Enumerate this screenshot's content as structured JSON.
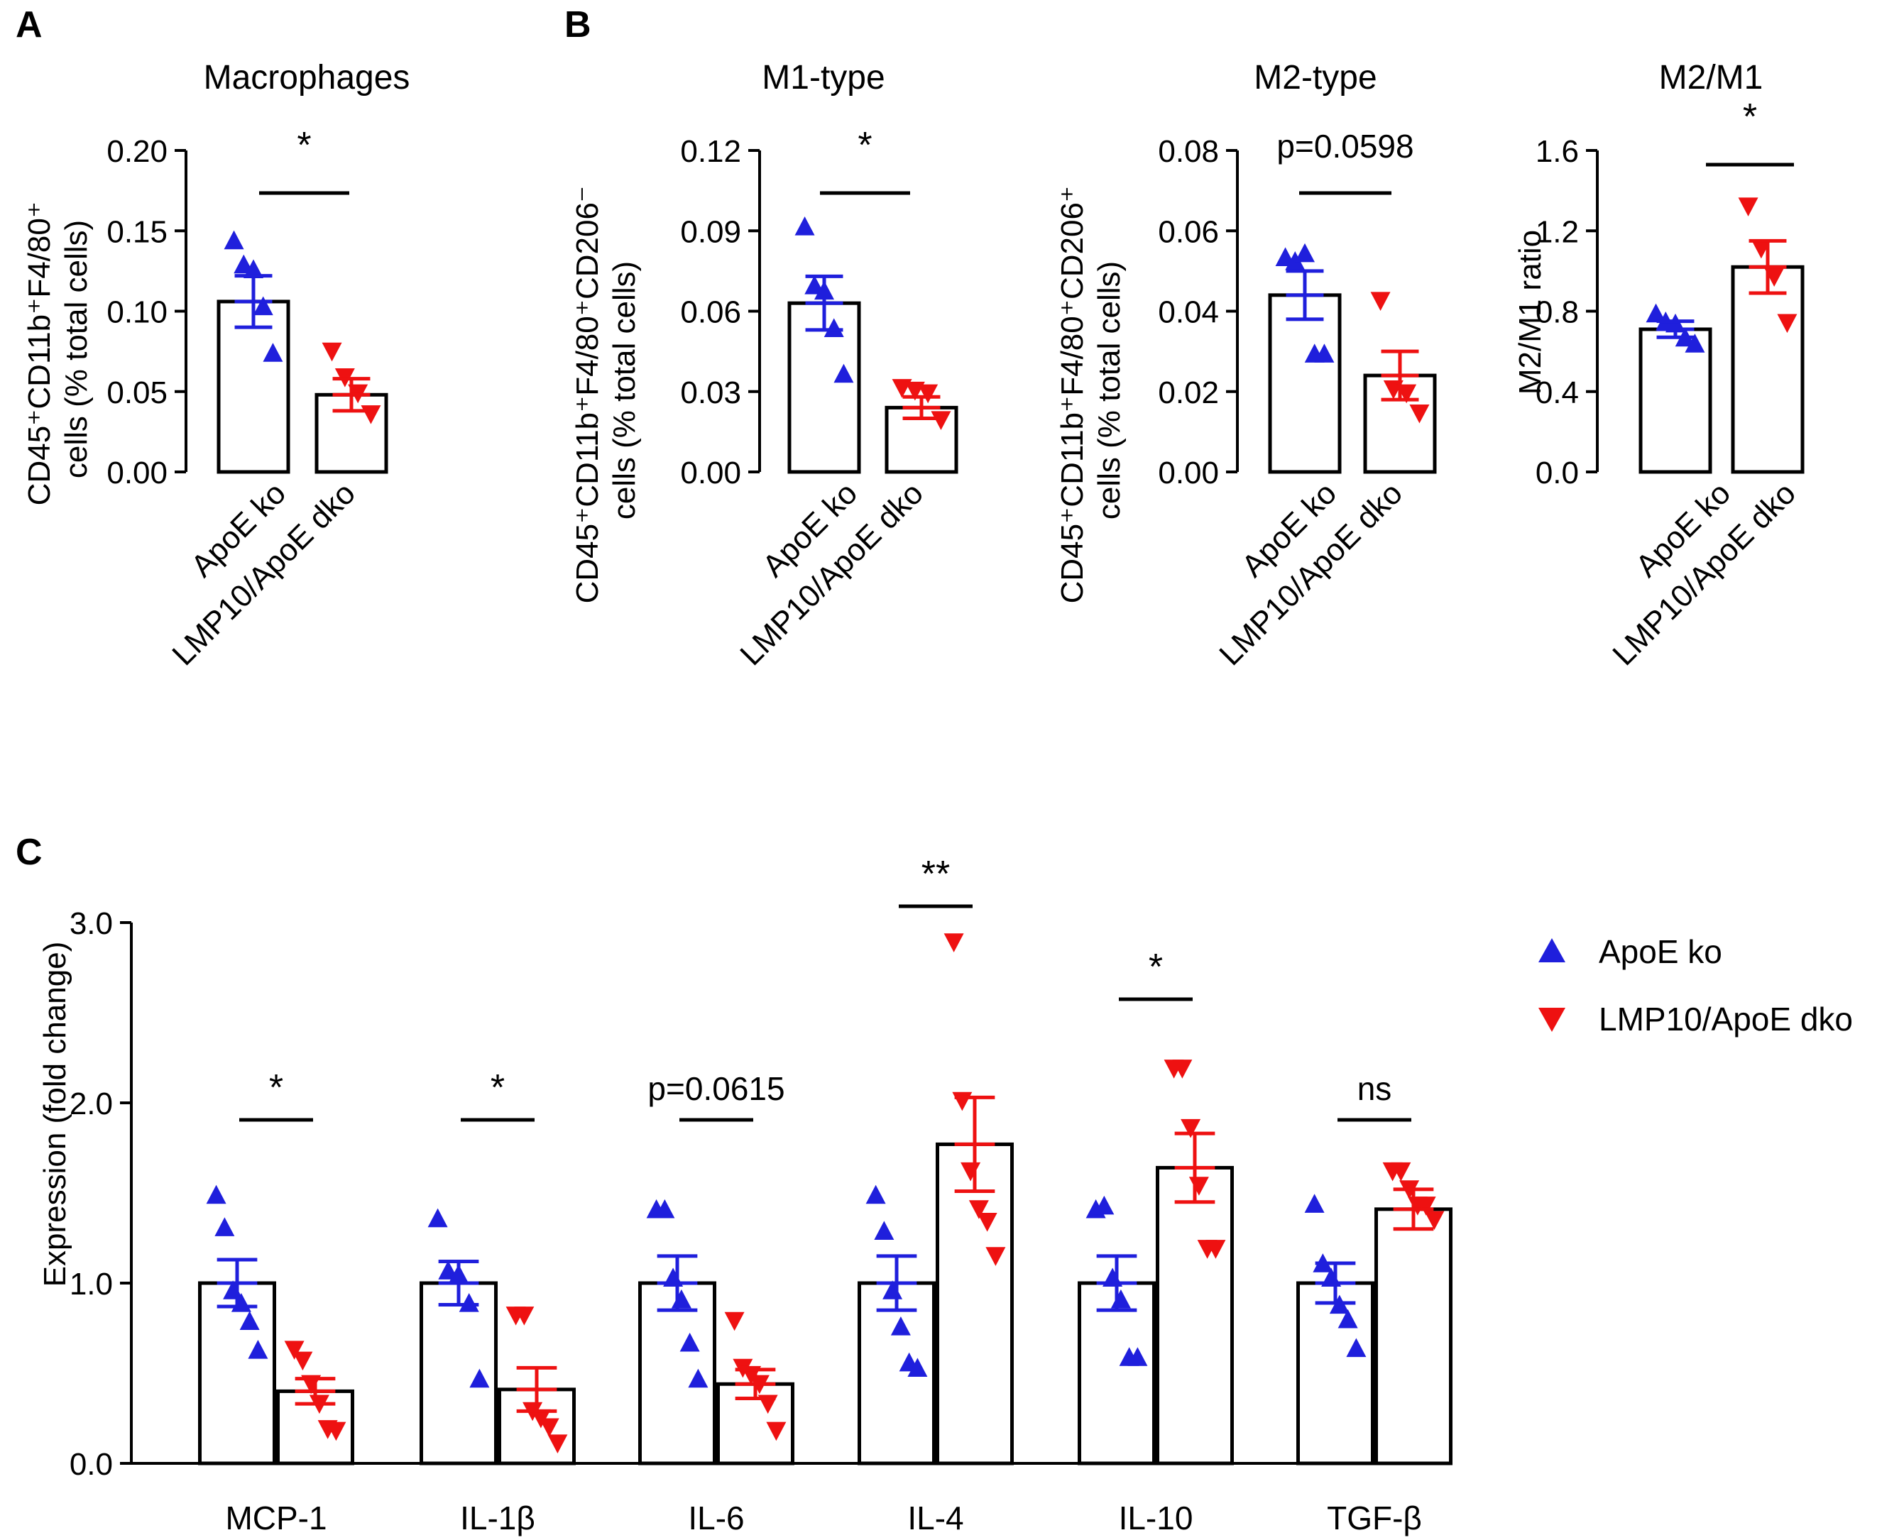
{
  "chart_data": {
    "type": "bar",
    "panels": [
      {
        "id": "A",
        "panel_label": "A",
        "title": "Macrophages",
        "ylabel": [
          "CD45⁺CD11b⁺F4/80⁺",
          "cells (% total cells)"
        ],
        "ylim": [
          0,
          0.2
        ],
        "yticks": [
          0.0,
          0.05,
          0.1,
          0.15,
          0.2
        ],
        "ytick_labels": [
          "0.00",
          "0.05",
          "0.10",
          "0.15",
          "0.20"
        ],
        "categories": [
          "ApoE ko",
          "LMP10/ApoE dko"
        ],
        "means": [
          0.106,
          0.048
        ],
        "sems": [
          0.016,
          0.01
        ],
        "points": [
          [
            0.143,
            0.128,
            0.125,
            0.102,
            0.073
          ],
          [
            0.076,
            0.06,
            0.05,
            0.037
          ]
        ],
        "significance": "*"
      },
      {
        "id": "M1",
        "panel_label": "B",
        "title": "M1-type",
        "ylabel": [
          "CD45⁺CD11b⁺F4/80⁺CD206⁻",
          "cells (% total cells)"
        ],
        "ylim": [
          0,
          0.12
        ],
        "yticks": [
          0.0,
          0.03,
          0.06,
          0.09,
          0.12
        ],
        "ytick_labels": [
          "0.00",
          "0.03",
          "0.06",
          "0.09",
          "0.12"
        ],
        "categories": [
          "ApoE ko",
          "LMP10/ApoE dko"
        ],
        "means": [
          0.063,
          0.024
        ],
        "sems": [
          0.01,
          0.004
        ],
        "points": [
          [
            0.091,
            0.069,
            0.067,
            0.053,
            0.036
          ],
          [
            0.032,
            0.031,
            0.03,
            0.02
          ]
        ],
        "significance": "*"
      },
      {
        "id": "M2",
        "panel_label": "",
        "title": "M2-type",
        "ylabel": [
          "CD45⁺CD11b⁺F4/80⁺CD206⁺",
          "cells (% total cells)"
        ],
        "ylim": [
          0,
          0.08
        ],
        "yticks": [
          0.0,
          0.02,
          0.04,
          0.06,
          0.08
        ],
        "ytick_labels": [
          "0.00",
          "0.02",
          "0.04",
          "0.06",
          "0.08"
        ],
        "categories": [
          "ApoE ko",
          "LMP10/ApoE dko"
        ],
        "means": [
          0.044,
          0.024
        ],
        "sems": [
          0.006,
          0.006
        ],
        "points": [
          [
            0.053,
            0.052,
            0.054,
            0.029,
            0.029
          ],
          [
            0.043,
            0.021,
            0.02,
            0.015
          ]
        ],
        "significance": "p=0.0598"
      },
      {
        "id": "ratio",
        "panel_label": "",
        "title": "M2/M1",
        "ylabel": [
          "M2/M1 ratio"
        ],
        "ylim": [
          0,
          1.6
        ],
        "yticks": [
          0.0,
          0.4,
          0.8,
          1.2,
          1.6
        ],
        "ytick_labels": [
          "0.0",
          "0.4",
          "0.8",
          "1.2",
          "1.6"
        ],
        "categories": [
          "ApoE ko",
          "LMP10/ApoE dko"
        ],
        "means": [
          0.71,
          1.02
        ],
        "sems": [
          0.04,
          0.13
        ],
        "points": [
          [
            0.78,
            0.74,
            0.73,
            0.66,
            0.63
          ],
          [
            1.33,
            1.12,
            0.98,
            0.75
          ]
        ],
        "significance": "*"
      },
      {
        "id": "C",
        "panel_label": "C",
        "title": "",
        "ylabel": [
          "Expression (fold change)"
        ],
        "ylim": [
          0,
          3.0
        ],
        "yticks": [
          0.0,
          1.0,
          2.0,
          3.0
        ],
        "ytick_labels": [
          "0.0",
          "1.0",
          "2.0",
          "3.0"
        ],
        "categories": [
          "MCP-1",
          "IL-1β",
          "IL-6",
          "IL-4",
          "IL-10",
          "TGF-β"
        ],
        "series": [
          {
            "name": "ApoE ko",
            "color": "#1f1fdc",
            "means": [
              1.0,
              1.0,
              1.0,
              1.0,
              1.0,
              1.0
            ],
            "sems": [
              0.13,
              0.12,
              0.15,
              0.15,
              0.15,
              0.11
            ],
            "points": [
              [
                1.48,
                1.3,
                0.95,
                0.88,
                0.78,
                0.62
              ],
              [
                1.35,
                1.06,
                1.04,
                0.88,
                0.46
              ],
              [
                1.4,
                1.4,
                1.02,
                0.9,
                0.66,
                0.46
              ],
              [
                1.48,
                1.28,
                0.95,
                0.75,
                0.55,
                0.52
              ],
              [
                1.4,
                1.42,
                1.02,
                0.9,
                0.58,
                0.58
              ],
              [
                1.43,
                1.1,
                1.02,
                0.87,
                0.79,
                0.63
              ]
            ]
          },
          {
            "name": "LMP10/ApoE dko",
            "color": "#ee1111",
            "means": [
              0.4,
              0.41,
              0.44,
              1.77,
              1.64,
              1.41
            ],
            "sems": [
              0.07,
              0.12,
              0.08,
              0.26,
              0.19,
              0.11
            ],
            "points": [
              [
                0.64,
                0.58,
                0.45,
                0.34,
                0.2,
                0.19
              ],
              [
                0.83,
                0.83,
                0.3,
                0.26,
                0.21,
                0.12
              ],
              [
                0.8,
                0.54,
                0.5,
                0.45,
                0.34,
                0.19
              ],
              [
                2.9,
                2.02,
                1.63,
                1.42,
                1.35,
                1.16
              ],
              [
                2.2,
                2.2,
                1.87,
                1.55,
                1.2,
                1.2
              ],
              [
                1.63,
                1.63,
                1.53,
                1.44,
                1.44,
                1.36
              ]
            ]
          }
        ],
        "significance": [
          "*",
          "*",
          "p=0.0615",
          "**",
          "*",
          "ns"
        ],
        "legend_position": "top-right"
      }
    ]
  },
  "legend": {
    "items": [
      {
        "label": "ApoE ko",
        "marker": "triangle-up",
        "color": "#1f1fdc"
      },
      {
        "label": "LMP10/ApoE dko",
        "marker": "triangle-down",
        "color": "#ee1111"
      }
    ]
  }
}
